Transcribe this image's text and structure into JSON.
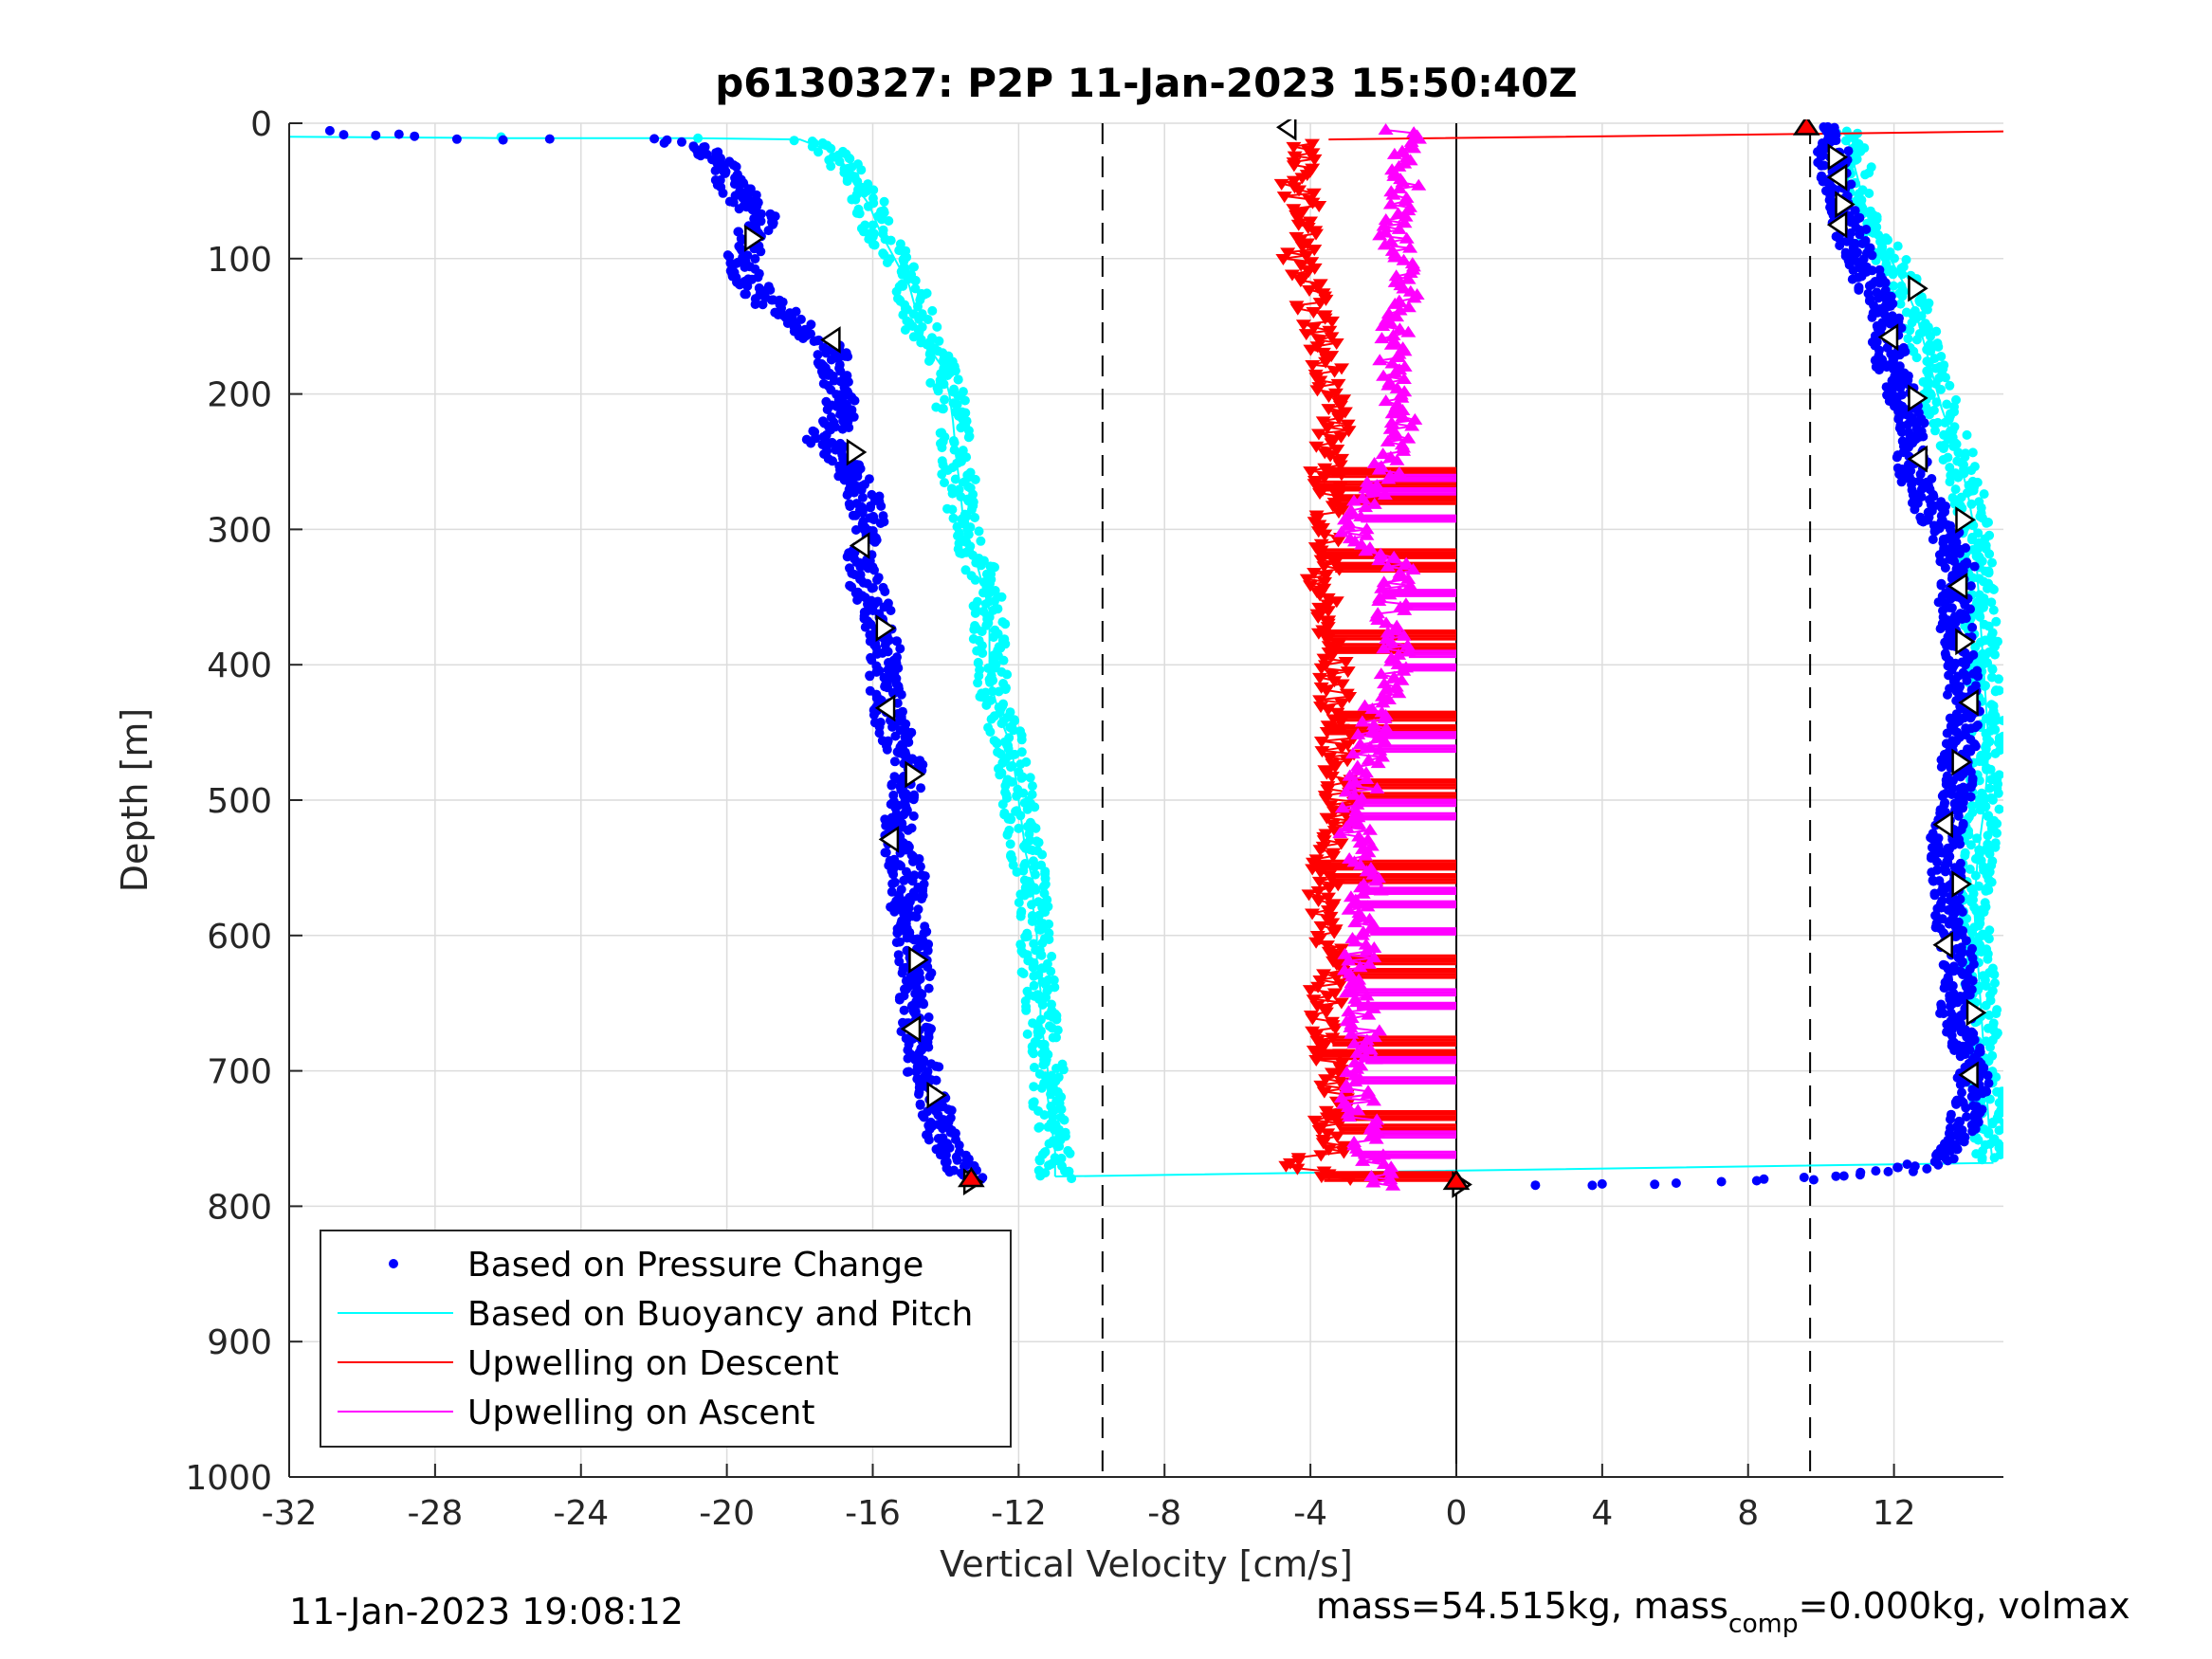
{
  "chart_data": {
    "type": "scatter",
    "title": "p6130327: P2P 11-Jan-2023 15:50:40Z",
    "xlabel": "Vertical Velocity [cm/s]",
    "ylabel": "Depth [m]",
    "xlim": [
      -32,
      15
    ],
    "ylim": [
      0,
      1000
    ],
    "y_reversed": true,
    "grid": true,
    "x_ticks": [
      "-32",
      "-28",
      "-24",
      "-20",
      "-16",
      "-12",
      "-8",
      "-4",
      "0",
      "4",
      "8",
      "12"
    ],
    "y_ticks": [
      "0",
      "100",
      "200",
      "300",
      "400",
      "500",
      "600",
      "700",
      "800",
      "900",
      "1000"
    ],
    "vertical_lines": [
      {
        "x": -9.7,
        "style": "dashed",
        "color": "#000000"
      },
      {
        "x": 9.7,
        "style": "dashed",
        "color": "#000000"
      },
      {
        "x": 0,
        "style": "solid",
        "color": "#000000",
        "from_depth": 0,
        "to_depth": 1000
      }
    ],
    "legend_position": "bottom-left",
    "series": [
      {
        "name": "Based on Pressure Change",
        "color": "#0000ff",
        "style": "dots",
        "descent_profile": [
          [
            -31,
            7
          ],
          [
            -28.5,
            10
          ],
          [
            -25,
            12
          ],
          [
            -22,
            12
          ],
          [
            -20.5,
            18
          ],
          [
            -20.2,
            30
          ],
          [
            -19.6,
            55
          ],
          [
            -19,
            70
          ],
          [
            -19.5,
            90
          ],
          [
            -19.6,
            110
          ],
          [
            -19,
            130
          ],
          [
            -18,
            150
          ],
          [
            -17.2,
            165
          ],
          [
            -17,
            185
          ],
          [
            -16.8,
            200
          ],
          [
            -17,
            220
          ],
          [
            -17.4,
            235
          ],
          [
            -16.8,
            250
          ],
          [
            -16.3,
            270
          ],
          [
            -16.1,
            290
          ],
          [
            -16.3,
            315
          ],
          [
            -16.2,
            340
          ],
          [
            -15.8,
            365
          ],
          [
            -15.6,
            390
          ],
          [
            -15.7,
            410
          ],
          [
            -15.6,
            435
          ],
          [
            -15.3,
            455
          ],
          [
            -15,
            480
          ],
          [
            -15.2,
            505
          ],
          [
            -15.4,
            530
          ],
          [
            -15,
            555
          ],
          [
            -15.1,
            580
          ],
          [
            -14.9,
            605
          ],
          [
            -14.8,
            630
          ],
          [
            -14.9,
            655
          ],
          [
            -14.7,
            680
          ],
          [
            -14.6,
            705
          ],
          [
            -14.3,
            725
          ],
          [
            -14.2,
            745
          ],
          [
            -13.8,
            760
          ],
          [
            -13.6,
            770
          ],
          [
            -13.3,
            780
          ]
        ],
        "ascent_profile": [
          [
            2.5,
            785
          ],
          [
            5,
            783
          ],
          [
            8,
            781
          ],
          [
            10,
            779
          ],
          [
            11.5,
            776
          ],
          [
            12.5,
            772
          ],
          [
            13.2,
            765
          ],
          [
            13.8,
            750
          ],
          [
            14,
            730
          ],
          [
            14.2,
            710
          ],
          [
            14,
            690
          ],
          [
            13.8,
            670
          ],
          [
            13.6,
            650
          ],
          [
            13.8,
            630
          ],
          [
            13.7,
            610
          ],
          [
            13.5,
            590
          ],
          [
            13.4,
            570
          ],
          [
            13.5,
            550
          ],
          [
            13.4,
            530
          ],
          [
            13.6,
            510
          ],
          [
            13.8,
            490
          ],
          [
            13.7,
            470
          ],
          [
            13.9,
            450
          ],
          [
            13.9,
            430
          ],
          [
            13.9,
            410
          ],
          [
            13.8,
            390
          ],
          [
            13.7,
            370
          ],
          [
            13.6,
            350
          ],
          [
            13.8,
            330
          ],
          [
            13.5,
            310
          ],
          [
            13.1,
            290
          ],
          [
            12.7,
            270
          ],
          [
            12.5,
            250
          ],
          [
            12.6,
            230
          ],
          [
            12.4,
            210
          ],
          [
            12,
            190
          ],
          [
            11.9,
            170
          ],
          [
            11.8,
            150
          ],
          [
            11.6,
            130
          ],
          [
            11.2,
            110
          ],
          [
            10.9,
            90
          ],
          [
            10.7,
            70
          ],
          [
            10.5,
            50
          ],
          [
            10.3,
            30
          ],
          [
            10.3,
            10
          ],
          [
            10.2,
            2
          ]
        ]
      },
      {
        "name": "Based on Buoyancy and Pitch",
        "color": "#00ffff",
        "style": "line-dots",
        "descent_profile": [
          [
            -32,
            10
          ],
          [
            -26,
            11
          ],
          [
            -21,
            11
          ],
          [
            -18,
            12
          ],
          [
            -17.2,
            20
          ],
          [
            -16.8,
            30
          ],
          [
            -16.5,
            45
          ],
          [
            -16.1,
            60
          ],
          [
            -15.8,
            80
          ],
          [
            -15.4,
            100
          ],
          [
            -15,
            120
          ],
          [
            -14.8,
            140
          ],
          [
            -14.6,
            160
          ],
          [
            -14.1,
            180
          ],
          [
            -13.9,
            200
          ],
          [
            -13.8,
            220
          ],
          [
            -13.7,
            250
          ],
          [
            -13.6,
            270
          ],
          [
            -13.5,
            300
          ],
          [
            -13.2,
            320
          ],
          [
            -13,
            340
          ],
          [
            -12.8,
            360
          ],
          [
            -12.8,
            380
          ],
          [
            -12.8,
            400
          ],
          [
            -12.7,
            420
          ],
          [
            -12.5,
            440
          ],
          [
            -12.2,
            460
          ],
          [
            -12.1,
            480
          ],
          [
            -12,
            500
          ],
          [
            -11.9,
            520
          ],
          [
            -11.8,
            540
          ],
          [
            -11.6,
            560
          ],
          [
            -11.6,
            580
          ],
          [
            -11.5,
            600
          ],
          [
            -11.5,
            620
          ],
          [
            -11.4,
            640
          ],
          [
            -11.4,
            660
          ],
          [
            -11.3,
            680
          ],
          [
            -11.2,
            700
          ],
          [
            -11.2,
            720
          ],
          [
            -11.1,
            740
          ],
          [
            -11,
            760
          ],
          [
            -11,
            770
          ],
          [
            -11,
            778
          ]
        ],
        "ascent_profile": [
          [
            -11,
            778
          ],
          [
            14.7,
            768
          ],
          [
            14.6,
            740
          ],
          [
            14.5,
            700
          ],
          [
            14.4,
            660
          ],
          [
            14.3,
            620
          ],
          [
            14.2,
            580
          ],
          [
            14.3,
            540
          ],
          [
            14.5,
            500
          ],
          [
            14.6,
            460
          ],
          [
            14.5,
            420
          ],
          [
            14.4,
            380
          ],
          [
            14.3,
            340
          ],
          [
            14.2,
            300
          ],
          [
            14,
            270
          ],
          [
            13.7,
            240
          ],
          [
            13.3,
            210
          ],
          [
            13.1,
            190
          ],
          [
            12.8,
            160
          ],
          [
            12.6,
            140
          ],
          [
            12.3,
            120
          ],
          [
            11.9,
            100
          ],
          [
            11.4,
            80
          ],
          [
            11.2,
            60
          ],
          [
            11,
            40
          ],
          [
            10.8,
            20
          ],
          [
            10.7,
            5
          ]
        ]
      },
      {
        "name": "Upwelling on Descent",
        "color": "#ff0000",
        "style": "line-triangle-down",
        "profile": [
          [
            -4.2,
            15
          ],
          [
            -4.4,
            40
          ],
          [
            -4.1,
            70
          ],
          [
            -4.3,
            100
          ],
          [
            -4,
            130
          ],
          [
            -3.7,
            160
          ],
          [
            -3.4,
            190
          ],
          [
            -3.3,
            220
          ],
          [
            -3.6,
            250
          ],
          [
            -3.4,
            280
          ],
          [
            -3.6,
            320
          ],
          [
            -3.7,
            360
          ],
          [
            -3.4,
            400
          ],
          [
            -3.3,
            440
          ],
          [
            -3.2,
            480
          ],
          [
            -3.3,
            520
          ],
          [
            -3.7,
            560
          ],
          [
            -3.4,
            600
          ],
          [
            -3.6,
            640
          ],
          [
            -3.5,
            680
          ],
          [
            -3.4,
            720
          ],
          [
            -3.5,
            760
          ],
          [
            -4.5,
            770
          ],
          [
            -3,
            780
          ]
        ],
        "spikes_to_zero_depths": [
          255,
          265,
          275,
          315,
          325,
          375,
          385,
          435,
          445,
          485,
          495,
          545,
          555,
          615,
          625,
          675,
          685,
          730,
          740,
          775
        ],
        "surface_line": [
          [
            -3.5,
            12
          ],
          [
            9.3,
            8
          ],
          [
            15,
            6
          ]
        ]
      },
      {
        "name": "Upwelling on Ascent",
        "color": "#ff00ff",
        "style": "line-triangle-up",
        "profile": [
          [
            -1.5,
            5
          ],
          [
            -1.3,
            30
          ],
          [
            -1.5,
            60
          ],
          [
            -1.7,
            90
          ],
          [
            -1.4,
            120
          ],
          [
            -1.6,
            150
          ],
          [
            -1.8,
            180
          ],
          [
            -1.5,
            210
          ],
          [
            -1.7,
            240
          ],
          [
            -2.2,
            270
          ],
          [
            -2.8,
            300
          ],
          [
            -1.5,
            330
          ],
          [
            -1.8,
            360
          ],
          [
            -1.7,
            400
          ],
          [
            -2.2,
            440
          ],
          [
            -2.5,
            480
          ],
          [
            -2.8,
            520
          ],
          [
            -2.4,
            560
          ],
          [
            -2.6,
            600
          ],
          [
            -2.8,
            640
          ],
          [
            -2.4,
            680
          ],
          [
            -2.7,
            720
          ],
          [
            -2.4,
            760
          ],
          [
            -2,
            785
          ]
        ],
        "spikes_to_zero_depths": [
          260,
          270,
          290,
          345,
          355,
          390,
          400,
          450,
          460,
          500,
          510,
          565,
          575,
          595,
          640,
          650,
          690,
          705,
          745,
          760
        ]
      }
    ],
    "markers": [
      {
        "x": -19.3,
        "y": 85,
        "shape": "tri-right",
        "fill": "#ffffff"
      },
      {
        "x": -17.1,
        "y": 160,
        "shape": "tri-left",
        "fill": "#ffffff"
      },
      {
        "x": -16.5,
        "y": 243,
        "shape": "tri-right",
        "fill": "#ffffff"
      },
      {
        "x": -16.3,
        "y": 312,
        "shape": "tri-left",
        "fill": "#ffffff"
      },
      {
        "x": -15.7,
        "y": 373,
        "shape": "tri-right",
        "fill": "#ffffff"
      },
      {
        "x": -15.6,
        "y": 432,
        "shape": "tri-left",
        "fill": "#ffffff"
      },
      {
        "x": -14.9,
        "y": 481,
        "shape": "tri-right",
        "fill": "#ffffff"
      },
      {
        "x": -15.5,
        "y": 529,
        "shape": "tri-left",
        "fill": "#ffffff"
      },
      {
        "x": -14.8,
        "y": 618,
        "shape": "tri-right",
        "fill": "#ffffff"
      },
      {
        "x": -14.9,
        "y": 669,
        "shape": "tri-left",
        "fill": "#ffffff"
      },
      {
        "x": -14.3,
        "y": 718,
        "shape": "tri-right",
        "fill": "#ffffff"
      },
      {
        "x": -13.3,
        "y": 782,
        "shape": "tri-right",
        "fill": "#ffffff"
      },
      {
        "x": -13.3,
        "y": 780,
        "shape": "tri-up",
        "fill": "#ff0000"
      },
      {
        "x": -4.6,
        "y": 3,
        "shape": "tri-left",
        "fill": "#ffffff"
      },
      {
        "x": 0.1,
        "y": 784,
        "shape": "tri-right",
        "fill": "#ffffff"
      },
      {
        "x": 0,
        "y": 782,
        "shape": "tri-up",
        "fill": "#ff0000"
      },
      {
        "x": 9.6,
        "y": 3,
        "shape": "tri-up",
        "fill": "#ff0000"
      },
      {
        "x": 10.4,
        "y": 25,
        "shape": "tri-right",
        "fill": "#ffffff"
      },
      {
        "x": 10.5,
        "y": 40,
        "shape": "tri-left",
        "fill": "#ffffff"
      },
      {
        "x": 10.6,
        "y": 60,
        "shape": "tri-right",
        "fill": "#ffffff"
      },
      {
        "x": 10.5,
        "y": 75,
        "shape": "tri-left",
        "fill": "#ffffff"
      },
      {
        "x": 12.6,
        "y": 122,
        "shape": "tri-right",
        "fill": "#ffffff"
      },
      {
        "x": 11.9,
        "y": 158,
        "shape": "tri-left",
        "fill": "#ffffff"
      },
      {
        "x": 12.6,
        "y": 203,
        "shape": "tri-right",
        "fill": "#ffffff"
      },
      {
        "x": 12.7,
        "y": 248,
        "shape": "tri-left",
        "fill": "#ffffff"
      },
      {
        "x": 13.9,
        "y": 293,
        "shape": "tri-right",
        "fill": "#ffffff"
      },
      {
        "x": 13.8,
        "y": 342,
        "shape": "tri-left",
        "fill": "#ffffff"
      },
      {
        "x": 13.9,
        "y": 383,
        "shape": "tri-right",
        "fill": "#ffffff"
      },
      {
        "x": 14.1,
        "y": 428,
        "shape": "tri-left",
        "fill": "#ffffff"
      },
      {
        "x": 13.8,
        "y": 472,
        "shape": "tri-right",
        "fill": "#ffffff"
      },
      {
        "x": 13.4,
        "y": 518,
        "shape": "tri-left",
        "fill": "#ffffff"
      },
      {
        "x": 13.8,
        "y": 562,
        "shape": "tri-right",
        "fill": "#ffffff"
      },
      {
        "x": 13.4,
        "y": 607,
        "shape": "tri-left",
        "fill": "#ffffff"
      },
      {
        "x": 14.2,
        "y": 657,
        "shape": "tri-right",
        "fill": "#ffffff"
      },
      {
        "x": 14.1,
        "y": 703,
        "shape": "tri-left",
        "fill": "#ffffff"
      }
    ]
  },
  "footer": {
    "left": "11-Jan-2023 19:08:12",
    "right_main": "mass=54.515kg, mass",
    "right_sub": "comp",
    "right_tail": "=0.000kg, volmax"
  }
}
